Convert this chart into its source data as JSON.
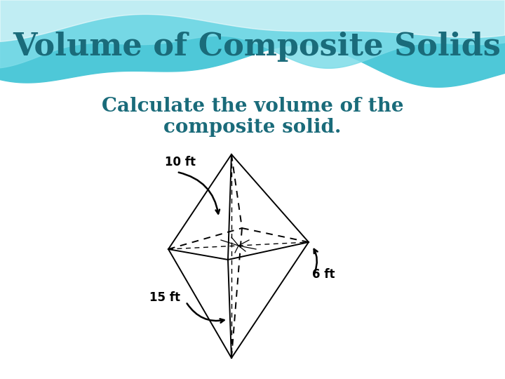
{
  "title": "Volume of Composite Solids",
  "subtitle_line1": "Calculate the volume of the",
  "subtitle_line2": "composite solid.",
  "title_color": "#1a6b7a",
  "subtitle_color": "#1a6b7a",
  "title_fontsize": 32,
  "subtitle_fontsize": 20,
  "label_10ft": "10 ft",
  "label_15ft": "15 ft",
  "label_6ft": "6 ft",
  "label_fontsize": 12,
  "fig_width": 7.2,
  "fig_height": 5.4,
  "wave_color1": "#4ec8d8",
  "wave_color2": "#7ddce8",
  "wave_color3": "#a8eaf2"
}
